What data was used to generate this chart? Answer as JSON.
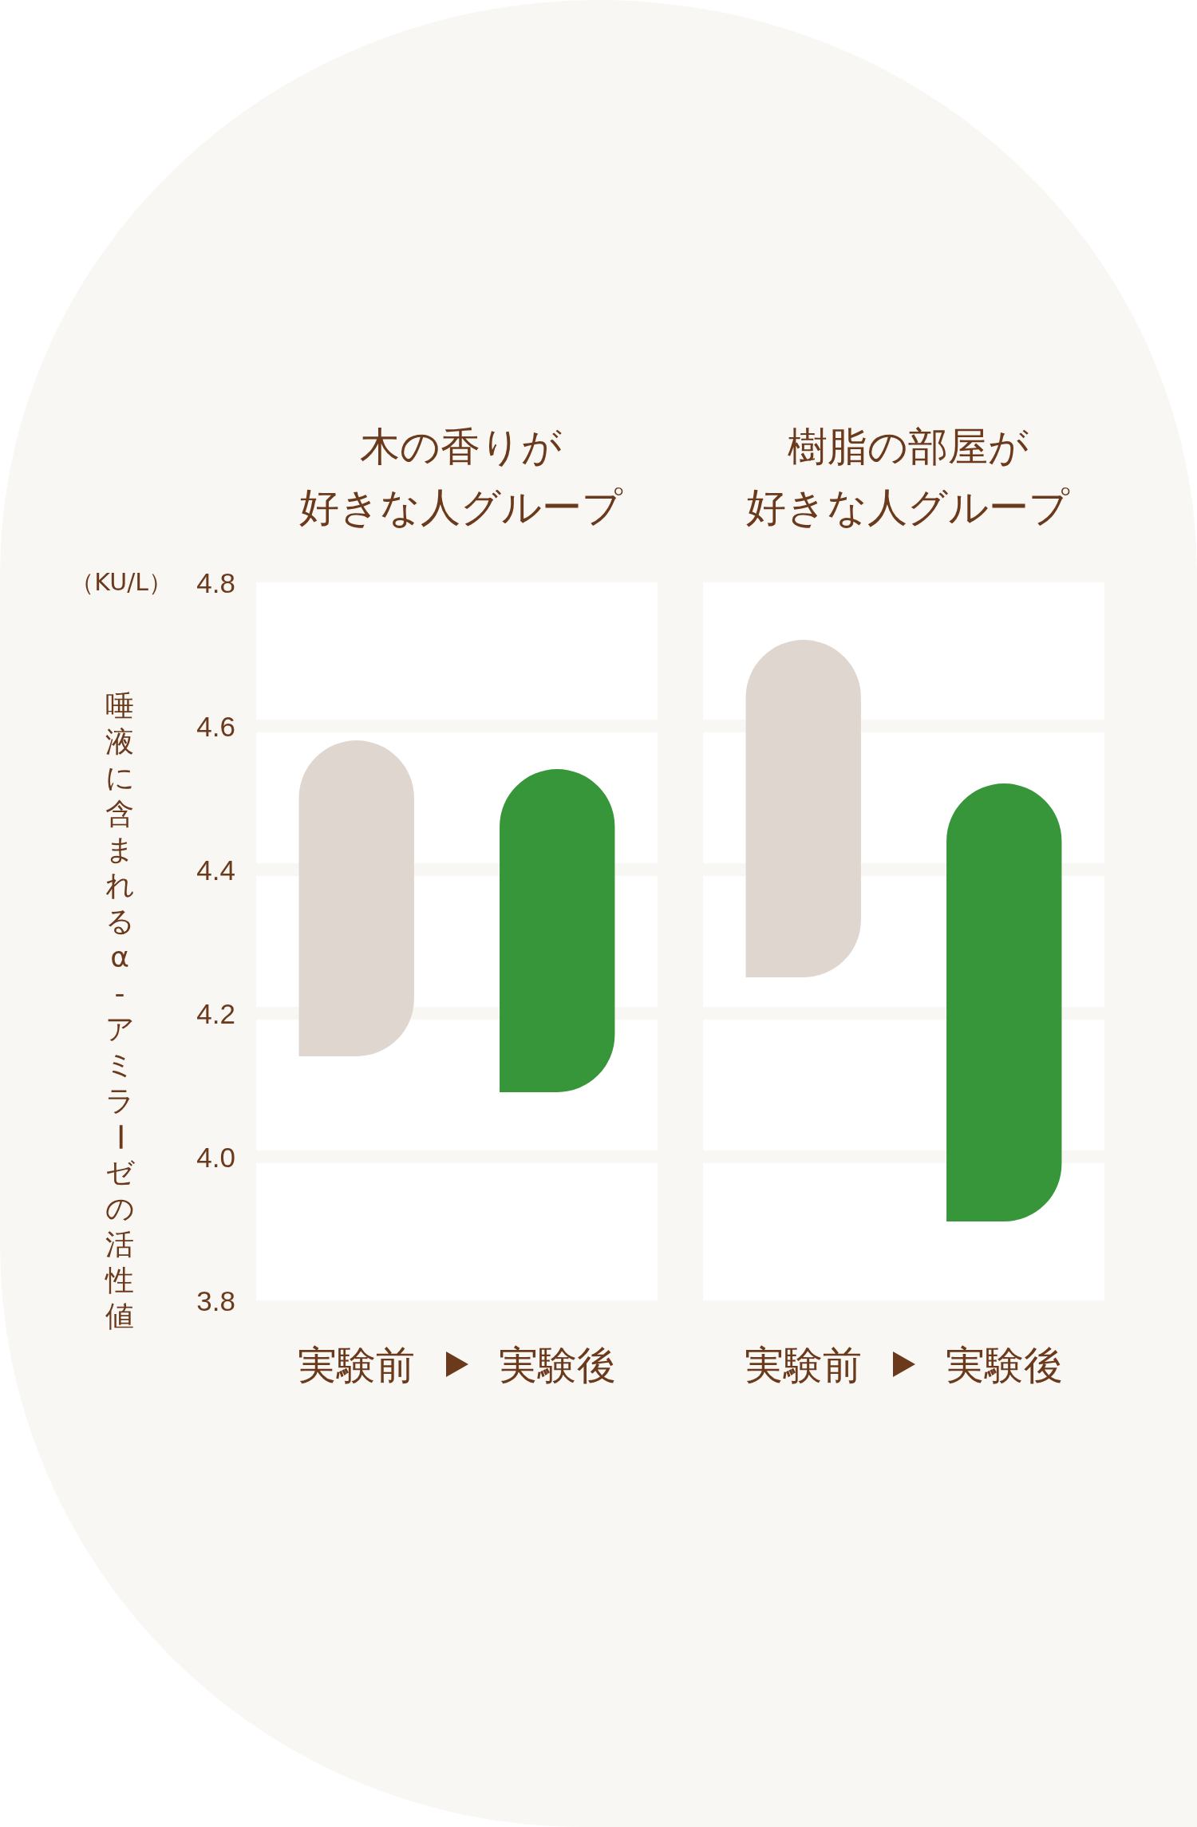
{
  "chart_data": [
    {
      "type": "bar",
      "title": "木の香りが好きな人グループ",
      "ylabel": "唾液に含まれるα-アミラーゼの活性値",
      "annotations": [
        "（KU/L）"
      ],
      "categories": [
        "実験前",
        "実験後"
      ],
      "base": [
        4.14,
        4.09
      ],
      "values": [
        0.44,
        0.45
      ],
      "colors": [
        "#dfd6d0",
        "#37963a"
      ],
      "ylim": [
        3.8,
        4.8
      ],
      "yticks": [
        3.8,
        {
          "value": 4,
          "label": "4.0"
        },
        4.2,
        4.4,
        4.6,
        4.8
      ],
      "grid": "y"
    },
    {
      "type": "bar",
      "title": "樹脂の部屋が好きな人グループ",
      "categories": [
        "実験前",
        "実験後"
      ],
      "base": [
        4.25,
        3.91
      ],
      "values": [
        0.47,
        0.61
      ],
      "colors": [
        "#dfd6d0",
        "#37963a"
      ],
      "ylim": [
        3.8,
        4.8
      ],
      "yticks": [
        3.8,
        4,
        4.2,
        4.4,
        4.6,
        4.8
      ],
      "grid": "y",
      "tick_labels": "x"
    }
  ]
}
